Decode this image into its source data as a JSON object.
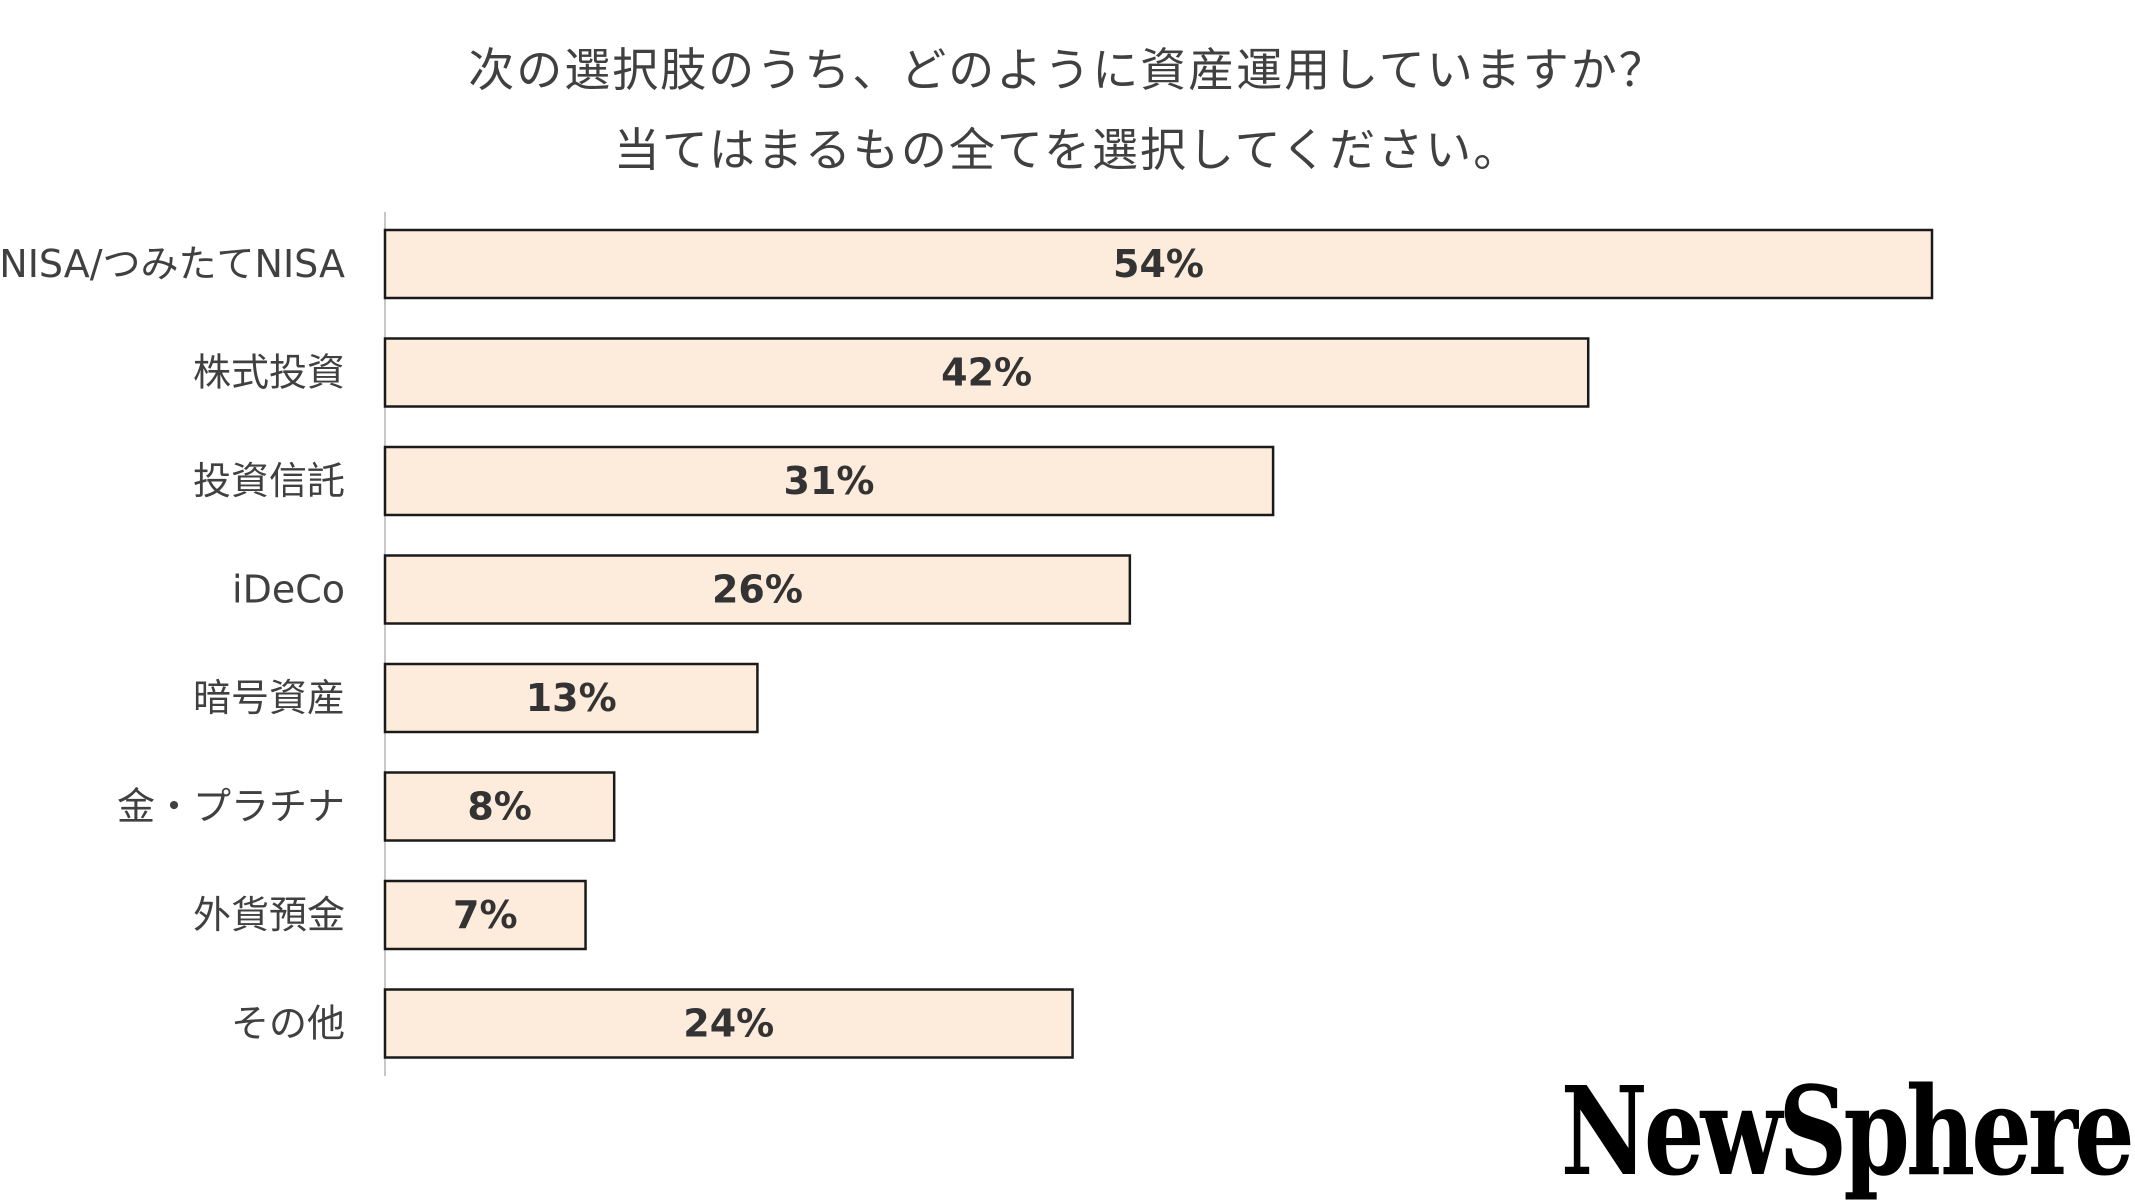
{
  "chart_data": {
    "type": "bar",
    "orientation": "horizontal",
    "title": "次の選択肢のうち、どのように資産運用していますか？",
    "subtitle": "当てはまるもの全てを選択してください。",
    "categories": [
      "NISA/つみたてNISA",
      "株式投資",
      "投資信託",
      "iDeCo",
      "暗号資産",
      "金・プラチナ",
      "外貨預金",
      "その他"
    ],
    "values": [
      54,
      42,
      31,
      26,
      13,
      8,
      7,
      24
    ],
    "value_labels": [
      "54%",
      "42%",
      "31%",
      "26%",
      "13%",
      "8%",
      "7%",
      "24%"
    ],
    "unit": "%",
    "xlim": [
      0,
      54
    ],
    "grid": false,
    "legend": "none",
    "bar_color": "#fdebdc",
    "bar_edge_color": "#1a1a1a"
  },
  "brand": {
    "logo_text": "NewSphere"
  }
}
